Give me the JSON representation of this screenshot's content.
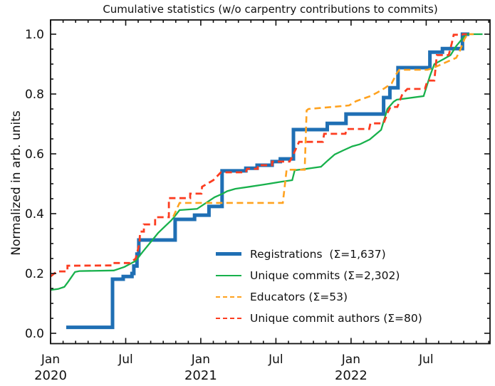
{
  "figure": {
    "title": "Cumulative statistics (w/o carpentry contributions to commits)",
    "background": "#ffffff",
    "text_color": "#111111"
  },
  "chart_data": {
    "type": "line",
    "title": "Cumulative statistics (w/o carpentry contributions to commits)",
    "xlabel": "",
    "ylabel": "Normalized in arb. units",
    "x_unit": "months since 2020-01-01",
    "xlim": [
      0,
      35.1
    ],
    "ylim": [
      -0.035,
      1.048
    ],
    "grid": false,
    "tick_direction": "in",
    "legend_position": "lower right (inside axes), no frame",
    "x_major_ticks": [
      {
        "m": 0,
        "label": "Jan",
        "year": "2020"
      },
      {
        "m": 6,
        "label": "Jul",
        "year": ""
      },
      {
        "m": 12,
        "label": "Jan",
        "year": "2021"
      },
      {
        "m": 18,
        "label": "Jul",
        "year": ""
      },
      {
        "m": 24,
        "label": "Jan",
        "year": "2022"
      },
      {
        "m": 30,
        "label": "Jul",
        "year": ""
      }
    ],
    "x_minor_step_months": 1,
    "y_major_ticks": [
      {
        "v": 0.0,
        "label": "0.0"
      },
      {
        "v": 0.2,
        "label": "0.2"
      },
      {
        "v": 0.4,
        "label": "0.4"
      },
      {
        "v": 0.6,
        "label": "0.6"
      },
      {
        "v": 0.8,
        "label": "0.8"
      },
      {
        "v": 1.0,
        "label": "1.0"
      }
    ],
    "y_minor_step": 0.05,
    "series": [
      {
        "name": "registrations",
        "legend_label": "Registrations  (Σ=1,637)",
        "total": "1,637",
        "color": "#1f6fb4",
        "style": "solid",
        "width": 5,
        "points": [
          [
            1.25,
            0.02
          ],
          [
            4.95,
            0.02
          ],
          [
            4.95,
            0.181
          ],
          [
            5.8,
            0.181
          ],
          [
            5.8,
            0.19
          ],
          [
            6.5,
            0.19
          ],
          [
            6.5,
            0.2
          ],
          [
            6.65,
            0.2
          ],
          [
            6.65,
            0.225
          ],
          [
            6.9,
            0.225
          ],
          [
            6.9,
            0.265
          ],
          [
            7.05,
            0.265
          ],
          [
            7.05,
            0.312
          ],
          [
            9.95,
            0.312
          ],
          [
            9.95,
            0.381
          ],
          [
            11.5,
            0.381
          ],
          [
            11.5,
            0.395
          ],
          [
            12.65,
            0.395
          ],
          [
            12.65,
            0.424
          ],
          [
            13.7,
            0.424
          ],
          [
            13.7,
            0.543
          ],
          [
            15.6,
            0.543
          ],
          [
            15.6,
            0.552
          ],
          [
            16.5,
            0.552
          ],
          [
            16.5,
            0.562
          ],
          [
            17.7,
            0.562
          ],
          [
            17.7,
            0.574
          ],
          [
            18.35,
            0.574
          ],
          [
            18.35,
            0.583
          ],
          [
            19.4,
            0.583
          ],
          [
            19.4,
            0.681
          ],
          [
            22.1,
            0.681
          ],
          [
            22.1,
            0.702
          ],
          [
            23.6,
            0.702
          ],
          [
            23.6,
            0.733
          ],
          [
            26.6,
            0.733
          ],
          [
            26.6,
            0.788
          ],
          [
            27.1,
            0.788
          ],
          [
            27.1,
            0.821
          ],
          [
            27.75,
            0.821
          ],
          [
            27.75,
            0.888
          ],
          [
            30.3,
            0.888
          ],
          [
            30.3,
            0.94
          ],
          [
            31.3,
            0.94
          ],
          [
            31.3,
            0.952
          ],
          [
            32.9,
            0.952
          ],
          [
            32.9,
            1.0
          ],
          [
            33.45,
            1.0
          ]
        ]
      },
      {
        "name": "unique-commits",
        "legend_label": "Unique commits (Σ=2,302)",
        "total": "2,302",
        "color": "#18b14c",
        "style": "solid",
        "width": 2.3,
        "points": [
          [
            0,
            0.145
          ],
          [
            0.6,
            0.148
          ],
          [
            1.1,
            0.155
          ],
          [
            1.4,
            0.172
          ],
          [
            1.7,
            0.19
          ],
          [
            1.95,
            0.205
          ],
          [
            2.3,
            0.208
          ],
          [
            5.05,
            0.21
          ],
          [
            5.9,
            0.222
          ],
          [
            6.8,
            0.242
          ],
          [
            7.35,
            0.272
          ],
          [
            8.0,
            0.305
          ],
          [
            8.6,
            0.336
          ],
          [
            9.2,
            0.36
          ],
          [
            9.6,
            0.376
          ],
          [
            9.9,
            0.39
          ],
          [
            10.3,
            0.412
          ],
          [
            11.7,
            0.416
          ],
          [
            13.1,
            0.455
          ],
          [
            13.75,
            0.467
          ],
          [
            14.1,
            0.475
          ],
          [
            14.75,
            0.483
          ],
          [
            15.9,
            0.49
          ],
          [
            17.0,
            0.497
          ],
          [
            18.45,
            0.507
          ],
          [
            19.3,
            0.512
          ],
          [
            19.5,
            0.545
          ],
          [
            20.45,
            0.55
          ],
          [
            21.6,
            0.557
          ],
          [
            22.15,
            0.578
          ],
          [
            22.7,
            0.598
          ],
          [
            23.4,
            0.612
          ],
          [
            24.1,
            0.625
          ],
          [
            24.7,
            0.632
          ],
          [
            25.5,
            0.648
          ],
          [
            26.4,
            0.68
          ],
          [
            26.9,
            0.75
          ],
          [
            27.4,
            0.774
          ],
          [
            27.65,
            0.781
          ],
          [
            29.8,
            0.793
          ],
          [
            30.3,
            0.86
          ],
          [
            30.65,
            0.9
          ],
          [
            31.4,
            0.917
          ],
          [
            31.95,
            0.93
          ],
          [
            32.4,
            0.96
          ],
          [
            32.95,
            0.988
          ],
          [
            33.25,
            1.0
          ],
          [
            34.5,
            1.0
          ]
        ]
      },
      {
        "name": "educators",
        "legend_label": "Educators (Σ=53)",
        "total": "53",
        "color": "#ffa21f",
        "style": "dashed",
        "width": 2.6,
        "points": [
          [
            9.8,
            0.39
          ],
          [
            10.3,
            0.436
          ],
          [
            18.55,
            0.436
          ],
          [
            18.85,
            0.547
          ],
          [
            20.3,
            0.547
          ],
          [
            20.45,
            0.745
          ],
          [
            20.6,
            0.75
          ],
          [
            22.55,
            0.757
          ],
          [
            23.85,
            0.762
          ],
          [
            24.4,
            0.776
          ],
          [
            25.0,
            0.785
          ],
          [
            25.55,
            0.793
          ],
          [
            26.1,
            0.805
          ],
          [
            26.7,
            0.82
          ],
          [
            27.25,
            0.836
          ],
          [
            27.65,
            0.869
          ],
          [
            27.85,
            0.881
          ],
          [
            30.1,
            0.881
          ],
          [
            30.5,
            0.886
          ],
          [
            31.25,
            0.9
          ],
          [
            32.4,
            0.921
          ],
          [
            32.65,
            0.94
          ],
          [
            33.05,
            0.983
          ],
          [
            33.3,
            1.0
          ],
          [
            33.8,
            1.0
          ]
        ]
      },
      {
        "name": "unique-commit-authors",
        "legend_label": "Unique commit authors (Σ=80)",
        "total": "80",
        "color": "#fc3d21",
        "style": "dashed",
        "width": 2.8,
        "points": [
          [
            0,
            0.19
          ],
          [
            0.5,
            0.207
          ],
          [
            1.35,
            0.207
          ],
          [
            1.35,
            0.226
          ],
          [
            4.9,
            0.227
          ],
          [
            4.95,
            0.235
          ],
          [
            6.35,
            0.235
          ],
          [
            6.8,
            0.25
          ],
          [
            7.1,
            0.3
          ],
          [
            7.15,
            0.34
          ],
          [
            7.45,
            0.34
          ],
          [
            7.45,
            0.364
          ],
          [
            8.35,
            0.364
          ],
          [
            8.35,
            0.388
          ],
          [
            9.45,
            0.388
          ],
          [
            9.45,
            0.452
          ],
          [
            11.15,
            0.452
          ],
          [
            11.15,
            0.467
          ],
          [
            12.05,
            0.467
          ],
          [
            12.1,
            0.49
          ],
          [
            13.0,
            0.512
          ],
          [
            13.6,
            0.538
          ],
          [
            15.6,
            0.538
          ],
          [
            15.7,
            0.55
          ],
          [
            16.55,
            0.55
          ],
          [
            16.55,
            0.562
          ],
          [
            17.7,
            0.562
          ],
          [
            17.7,
            0.574
          ],
          [
            19.1,
            0.574
          ],
          [
            19.3,
            0.59
          ],
          [
            19.85,
            0.64
          ],
          [
            21.75,
            0.64
          ],
          [
            21.85,
            0.667
          ],
          [
            23.55,
            0.667
          ],
          [
            23.65,
            0.683
          ],
          [
            25.45,
            0.683
          ],
          [
            25.55,
            0.702
          ],
          [
            26.6,
            0.702
          ],
          [
            26.95,
            0.74
          ],
          [
            27.15,
            0.757
          ],
          [
            27.7,
            0.757
          ],
          [
            28.1,
            0.8
          ],
          [
            28.5,
            0.817
          ],
          [
            29.9,
            0.817
          ],
          [
            30.1,
            0.845
          ],
          [
            30.65,
            0.845
          ],
          [
            30.85,
            0.93
          ],
          [
            31.8,
            0.93
          ],
          [
            32.05,
            0.97
          ],
          [
            32.2,
            0.998
          ],
          [
            32.85,
            0.998
          ],
          [
            32.95,
            1.0
          ],
          [
            33.25,
            1.0
          ]
        ]
      }
    ]
  }
}
